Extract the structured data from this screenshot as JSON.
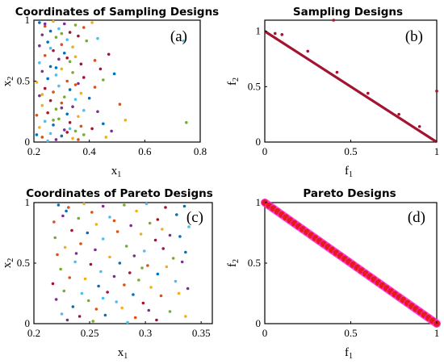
{
  "chart_data": [
    {
      "id": "a",
      "type": "scatter",
      "title": "Coordinates of Sampling Designs",
      "panel_label": "(a)",
      "xlabel": "x",
      "xlabel_sub": "1",
      "ylabel": "x",
      "ylabel_sub": "2",
      "xlim": [
        0.2,
        0.8
      ],
      "ylim": [
        0,
        1
      ],
      "xticks": [
        0.2,
        0.4,
        0.6,
        0.8
      ],
      "xtick_labels": [
        "0.2",
        "0.4",
        "0.6",
        "0.8"
      ],
      "yticks": [
        0,
        0.5,
        1
      ],
      "ytick_labels": [
        "0",
        "0.5",
        "1"
      ],
      "grid": false,
      "colors": [
        "#0072BD",
        "#D95319",
        "#EDB120",
        "#7E2F8E",
        "#77AC30",
        "#4DBEEE",
        "#A2142F"
      ],
      "points": [
        [
          0.22,
          0.98
        ],
        [
          0.24,
          0.95
        ],
        [
          0.27,
          0.99
        ],
        [
          0.31,
          0.97
        ],
        [
          0.35,
          0.96
        ],
        [
          0.29,
          0.93
        ],
        [
          0.33,
          0.9
        ],
        [
          0.26,
          0.91
        ],
        [
          0.38,
          0.94
        ],
        [
          0.41,
          0.98
        ],
        [
          0.23,
          0.88
        ],
        [
          0.28,
          0.86
        ],
        [
          0.32,
          0.84
        ],
        [
          0.36,
          0.87
        ],
        [
          0.25,
          0.82
        ],
        [
          0.3,
          0.8
        ],
        [
          0.34,
          0.78
        ],
        [
          0.22,
          0.79
        ],
        [
          0.39,
          0.83
        ],
        [
          0.43,
          0.85
        ],
        [
          0.27,
          0.75
        ],
        [
          0.31,
          0.73
        ],
        [
          0.24,
          0.71
        ],
        [
          0.35,
          0.7
        ],
        [
          0.29,
          0.68
        ],
        [
          0.33,
          0.66
        ],
        [
          0.22,
          0.65
        ],
        [
          0.37,
          0.64
        ],
        [
          0.26,
          0.62
        ],
        [
          0.42,
          0.67
        ],
        [
          0.3,
          0.6
        ],
        [
          0.23,
          0.58
        ],
        [
          0.34,
          0.57
        ],
        [
          0.28,
          0.55
        ],
        [
          0.38,
          0.53
        ],
        [
          0.25,
          0.52
        ],
        [
          0.32,
          0.5
        ],
        [
          0.21,
          0.49
        ],
        [
          0.36,
          0.48
        ],
        [
          0.45,
          0.51
        ],
        [
          0.29,
          0.46
        ],
        [
          0.24,
          0.44
        ],
        [
          0.33,
          0.43
        ],
        [
          0.27,
          0.41
        ],
        [
          0.37,
          0.4
        ],
        [
          0.22,
          0.38
        ],
        [
          0.31,
          0.37
        ],
        [
          0.35,
          0.35
        ],
        [
          0.26,
          0.34
        ],
        [
          0.4,
          0.36
        ],
        [
          0.3,
          0.32
        ],
        [
          0.23,
          0.3
        ],
        [
          0.34,
          0.29
        ],
        [
          0.28,
          0.27
        ],
        [
          0.38,
          0.26
        ],
        [
          0.25,
          0.24
        ],
        [
          0.32,
          0.23
        ],
        [
          0.21,
          0.22
        ],
        [
          0.36,
          0.21
        ],
        [
          0.43,
          0.25
        ],
        [
          0.29,
          0.19
        ],
        [
          0.24,
          0.17
        ],
        [
          0.33,
          0.16
        ],
        [
          0.27,
          0.14
        ],
        [
          0.37,
          0.13
        ],
        [
          0.22,
          0.12
        ],
        [
          0.31,
          0.1
        ],
        [
          0.35,
          0.09
        ],
        [
          0.26,
          0.07
        ],
        [
          0.41,
          0.11
        ],
        [
          0.3,
          0.05
        ],
        [
          0.23,
          0.04
        ],
        [
          0.34,
          0.03
        ],
        [
          0.28,
          0.02
        ],
        [
          0.38,
          0.06
        ],
        [
          0.25,
          0.01
        ],
        [
          0.32,
          0.08
        ],
        [
          0.21,
          0.06
        ],
        [
          0.36,
          0.02
        ],
        [
          0.46,
          0.04
        ],
        [
          0.24,
          0.97
        ],
        [
          0.3,
          0.89
        ],
        [
          0.26,
          0.77
        ],
        [
          0.32,
          0.69
        ],
        [
          0.28,
          0.61
        ],
        [
          0.35,
          0.47
        ],
        [
          0.23,
          0.39
        ],
        [
          0.3,
          0.28
        ],
        [
          0.27,
          0.18
        ],
        [
          0.33,
          0.11
        ],
        [
          0.47,
          0.72
        ],
        [
          0.49,
          0.56
        ],
        [
          0.51,
          0.31
        ],
        [
          0.53,
          0.18
        ],
        [
          0.48,
          0.09
        ],
        [
          0.75,
          0.16
        ],
        [
          0.74,
          0.83
        ],
        [
          0.44,
          0.6
        ],
        [
          0.45,
          0.15
        ],
        [
          0.42,
          0.45
        ]
      ]
    },
    {
      "id": "b",
      "type": "scatter",
      "title": "Sampling Designs",
      "panel_label": "(b)",
      "xlabel": "f",
      "xlabel_sub": "1",
      "ylabel": "f",
      "ylabel_sub": "2",
      "xlim": [
        0,
        1
      ],
      "ylim": [
        0,
        1.1
      ],
      "xticks": [
        0,
        0.5,
        1
      ],
      "xtick_labels": [
        "0",
        "0.5",
        "1"
      ],
      "yticks": [
        0,
        0.5,
        1
      ],
      "ytick_labels": [
        "0",
        "0.5",
        "1"
      ],
      "grid": false,
      "marker_color": "#A2142F",
      "front_x": [
        0,
        1
      ],
      "front_y": [
        1,
        0
      ],
      "outliers": [
        [
          0.4,
          1.1
        ],
        [
          1.0,
          0.46
        ],
        [
          0.06,
          0.98
        ],
        [
          0.1,
          0.97
        ],
        [
          0.25,
          0.82
        ],
        [
          0.42,
          0.63
        ],
        [
          0.6,
          0.44
        ],
        [
          0.78,
          0.25
        ],
        [
          0.9,
          0.14
        ]
      ]
    },
    {
      "id": "c",
      "type": "scatter",
      "title": "Coordinates of Pareto Designs",
      "panel_label": "(c)",
      "xlabel": "x",
      "xlabel_sub": "1",
      "ylabel": "x",
      "ylabel_sub": "2",
      "xlim": [
        0.2,
        0.36
      ],
      "ylim": [
        0,
        1
      ],
      "xticks": [
        0.2,
        0.25,
        0.3,
        0.35
      ],
      "xtick_labels": [
        "0.2",
        "0.25",
        "0.3",
        "0.35"
      ],
      "yticks": [
        0,
        0.5,
        1
      ],
      "ytick_labels": [
        "0",
        "0.5",
        "1"
      ],
      "grid": false,
      "colors": [
        "#0072BD",
        "#D95319",
        "#EDB120",
        "#7E2F8E",
        "#77AC30",
        "#4DBEEE",
        "#A2142F"
      ],
      "points": [
        [
          0.222,
          0.98
        ],
        [
          0.231,
          0.96
        ],
        [
          0.245,
          0.99
        ],
        [
          0.262,
          0.97
        ],
        [
          0.281,
          0.98
        ],
        [
          0.301,
          0.99
        ],
        [
          0.318,
          0.96
        ],
        [
          0.335,
          0.97
        ],
        [
          0.252,
          0.92
        ],
        [
          0.292,
          0.93
        ],
        [
          0.226,
          0.89
        ],
        [
          0.24,
          0.87
        ],
        [
          0.268,
          0.88
        ],
        [
          0.311,
          0.86
        ],
        [
          0.328,
          0.9
        ],
        [
          0.218,
          0.84
        ],
        [
          0.256,
          0.82
        ],
        [
          0.287,
          0.81
        ],
        [
          0.304,
          0.83
        ],
        [
          0.339,
          0.8
        ],
        [
          0.234,
          0.77
        ],
        [
          0.248,
          0.75
        ],
        [
          0.275,
          0.76
        ],
        [
          0.296,
          0.74
        ],
        [
          0.322,
          0.73
        ],
        [
          0.219,
          0.71
        ],
        [
          0.262,
          0.7
        ],
        [
          0.309,
          0.69
        ],
        [
          0.331,
          0.72
        ],
        [
          0.242,
          0.66
        ],
        [
          0.228,
          0.63
        ],
        [
          0.255,
          0.61
        ],
        [
          0.283,
          0.64
        ],
        [
          0.299,
          0.6
        ],
        [
          0.316,
          0.62
        ],
        [
          0.336,
          0.59
        ],
        [
          0.221,
          0.57
        ],
        [
          0.268,
          0.55
        ],
        [
          0.29,
          0.56
        ],
        [
          0.325,
          0.54
        ],
        [
          0.237,
          0.51
        ],
        [
          0.251,
          0.49
        ],
        [
          0.277,
          0.5
        ],
        [
          0.302,
          0.48
        ],
        [
          0.319,
          0.47
        ],
        [
          0.333,
          0.51
        ],
        [
          0.224,
          0.45
        ],
        [
          0.26,
          0.43
        ],
        [
          0.286,
          0.42
        ],
        [
          0.311,
          0.41
        ],
        [
          0.232,
          0.38
        ],
        [
          0.246,
          0.37
        ],
        [
          0.272,
          0.39
        ],
        [
          0.294,
          0.36
        ],
        [
          0.327,
          0.35
        ],
        [
          0.217,
          0.33
        ],
        [
          0.258,
          0.31
        ],
        [
          0.281,
          0.32
        ],
        [
          0.305,
          0.3
        ],
        [
          0.338,
          0.29
        ],
        [
          0.227,
          0.27
        ],
        [
          0.243,
          0.25
        ],
        [
          0.266,
          0.26
        ],
        [
          0.289,
          0.24
        ],
        [
          0.314,
          0.23
        ],
        [
          0.33,
          0.25
        ],
        [
          0.22,
          0.2
        ],
        [
          0.249,
          0.19
        ],
        [
          0.274,
          0.18
        ],
        [
          0.298,
          0.17
        ],
        [
          0.235,
          0.14
        ],
        [
          0.256,
          0.12
        ],
        [
          0.279,
          0.13
        ],
        [
          0.303,
          0.11
        ],
        [
          0.322,
          0.1
        ],
        [
          0.225,
          0.08
        ],
        [
          0.241,
          0.06
        ],
        [
          0.264,
          0.07
        ],
        [
          0.291,
          0.05
        ],
        [
          0.336,
          0.06
        ],
        [
          0.23,
          0.03
        ],
        [
          0.253,
          0.02
        ],
        [
          0.284,
          0.01
        ],
        [
          0.31,
          0.03
        ],
        [
          0.229,
          0.93
        ],
        [
          0.272,
          0.85
        ],
        [
          0.315,
          0.78
        ],
        [
          0.238,
          0.58
        ],
        [
          0.297,
          0.46
        ],
        [
          0.262,
          0.21
        ]
      ]
    },
    {
      "id": "d",
      "type": "scatter",
      "title": "Pareto Designs",
      "panel_label": "(d)",
      "xlabel": "f",
      "xlabel_sub": "1",
      "ylabel": "f",
      "ylabel_sub": "2",
      "xlim": [
        0,
        1
      ],
      "ylim": [
        0,
        1
      ],
      "xticks": [
        0,
        0.5,
        1
      ],
      "xtick_labels": [
        "0",
        "0.5",
        "1"
      ],
      "yticks": [
        0,
        0.5,
        1
      ],
      "ytick_labels": [
        "0",
        "0.5",
        "1"
      ],
      "grid": false,
      "marker_color": "#E41A1C",
      "marker_edge": "#FF2DCC",
      "front_x": [
        0,
        1
      ],
      "front_y": [
        1,
        0
      ],
      "n_points": 42
    }
  ]
}
